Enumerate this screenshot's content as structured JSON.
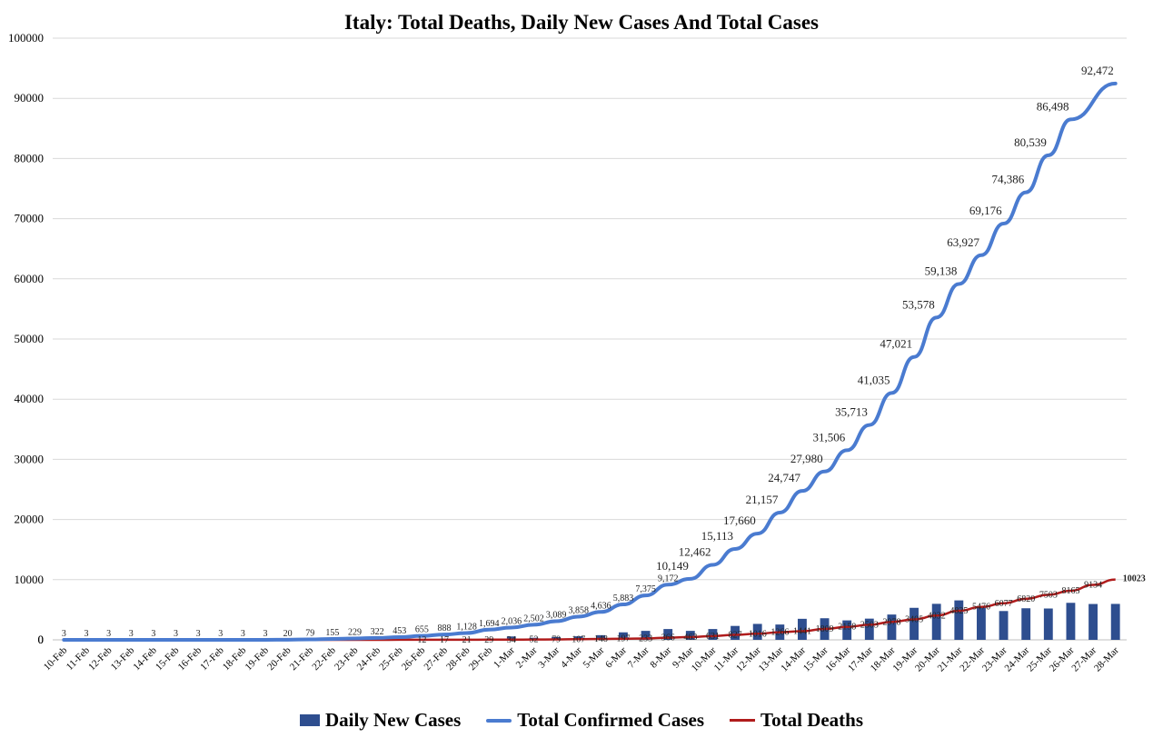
{
  "chart_data": {
    "type": "bar+line",
    "title": "Italy: Total Deaths, Daily New Cases And Total Cases",
    "ylim": [
      0,
      100000
    ],
    "yticks": [
      "0",
      "10000",
      "20000",
      "30000",
      "40000",
      "50000",
      "60000",
      "70000",
      "80000",
      "90000",
      "100000"
    ],
    "grid": true,
    "legend_position": "bottom",
    "categories": [
      "10-Feb",
      "11-Feb",
      "12-Feb",
      "13-Feb",
      "14-Feb",
      "15-Feb",
      "16-Feb",
      "17-Feb",
      "18-Feb",
      "19-Feb",
      "20-Feb",
      "21-Feb",
      "22-Feb",
      "23-Feb",
      "24-Feb",
      "25-Feb",
      "26-Feb",
      "27-Feb",
      "28-Feb",
      "29-Feb",
      "1-Mar",
      "2-Mar",
      "3-Mar",
      "4-Mar",
      "5-Mar",
      "6-Mar",
      "7-Mar",
      "8-Mar",
      "9-Mar",
      "10-Mar",
      "11-Mar",
      "12-Mar",
      "13-Mar",
      "14-Mar",
      "15-Mar",
      "16-Mar",
      "17-Mar",
      "18-Mar",
      "19-Mar",
      "20-Mar",
      "21-Mar",
      "22-Mar",
      "23-Mar",
      "24-Mar",
      "25-Mar",
      "26-Mar",
      "27-Mar",
      "28-Mar"
    ],
    "series": [
      {
        "name": "Daily New Cases",
        "kind": "bar",
        "color": "#2e4e8f",
        "values": [
          0,
          0,
          0,
          0,
          0,
          0,
          0,
          0,
          0,
          0,
          17,
          59,
          76,
          67,
          99,
          124,
          145,
          203,
          193,
          216,
          565,
          347,
          466,
          588,
          777,
          1247,
          1492,
          1797,
          1492,
          1797,
          2313,
          2651,
          2547,
          3497,
          3590,
          3233,
          3526,
          4207,
          5322,
          5986,
          6557,
          5560,
          4789,
          5249,
          5210,
          6153,
          5959,
          5974
        ]
      },
      {
        "name": "Total Confirmed Cases",
        "kind": "line",
        "color": "#4a7bd0",
        "values": [
          3,
          3,
          3,
          3,
          3,
          3,
          3,
          3,
          3,
          3,
          20,
          79,
          155,
          229,
          322,
          453,
          655,
          888,
          1128,
          1694,
          2036,
          2502,
          3089,
          3858,
          4636,
          5883,
          7375,
          9172,
          10149,
          12462,
          15113,
          17660,
          21157,
          24747,
          27980,
          31506,
          35713,
          41035,
          47021,
          53578,
          59138,
          63927,
          69176,
          74386,
          80539,
          86498,
          92472,
          92472
        ],
        "labels": [
          "3",
          "3",
          "3",
          "3",
          "3",
          "3",
          "3",
          "3",
          "3",
          "3",
          "20",
          "79",
          "155",
          "229",
          "322",
          "453",
          "655",
          "888",
          "1,128",
          "1,694",
          "2,036",
          "2,502",
          "3,089",
          "3,858",
          "4,636",
          "5,883",
          "7,375",
          "9,172",
          "10,149",
          "12,462",
          "15,113",
          "17,660",
          "21,157",
          "24,747",
          "27,980",
          "31,506",
          "35,713",
          "41,035",
          "47,021",
          "53,578",
          "59,138",
          "63,927",
          "69,176",
          "74,386",
          "80,539",
          "86,498",
          "92,472",
          ""
        ]
      },
      {
        "name": "Total Deaths",
        "kind": "line",
        "color": "#b01c1c",
        "values": [
          0,
          0,
          0,
          0,
          0,
          0,
          0,
          0,
          0,
          0,
          0,
          1,
          2,
          6,
          7,
          10,
          12,
          17,
          21,
          29,
          34,
          52,
          79,
          107,
          148,
          197,
          233,
          366,
          463,
          631,
          827,
          1016,
          1266,
          1441,
          1809,
          2158,
          2503,
          2978,
          3405,
          4032,
          4825,
          5476,
          6077,
          6820,
          7503,
          8165,
          9134,
          10023
        ],
        "labels": [
          "",
          "",
          "",
          "",
          "",
          "",
          "",
          "",
          "",
          "",
          "",
          "",
          "",
          "",
          "",
          "",
          "12",
          "17",
          "21",
          "29",
          "34",
          "52",
          "79",
          "107",
          "148",
          "197",
          "233",
          "366",
          "463",
          "631",
          "827",
          "1016",
          "1266",
          "1441",
          "1809",
          "2158",
          "2503",
          "2978",
          "3405",
          "4032",
          "4825",
          "5476",
          "6077",
          "6820",
          "7503",
          "8165",
          "9134",
          "10023"
        ]
      }
    ],
    "zero_label": "0"
  },
  "legend": {
    "bar": "Daily New Cases",
    "blue": "Total Confirmed Cases",
    "red": "Total Deaths"
  }
}
